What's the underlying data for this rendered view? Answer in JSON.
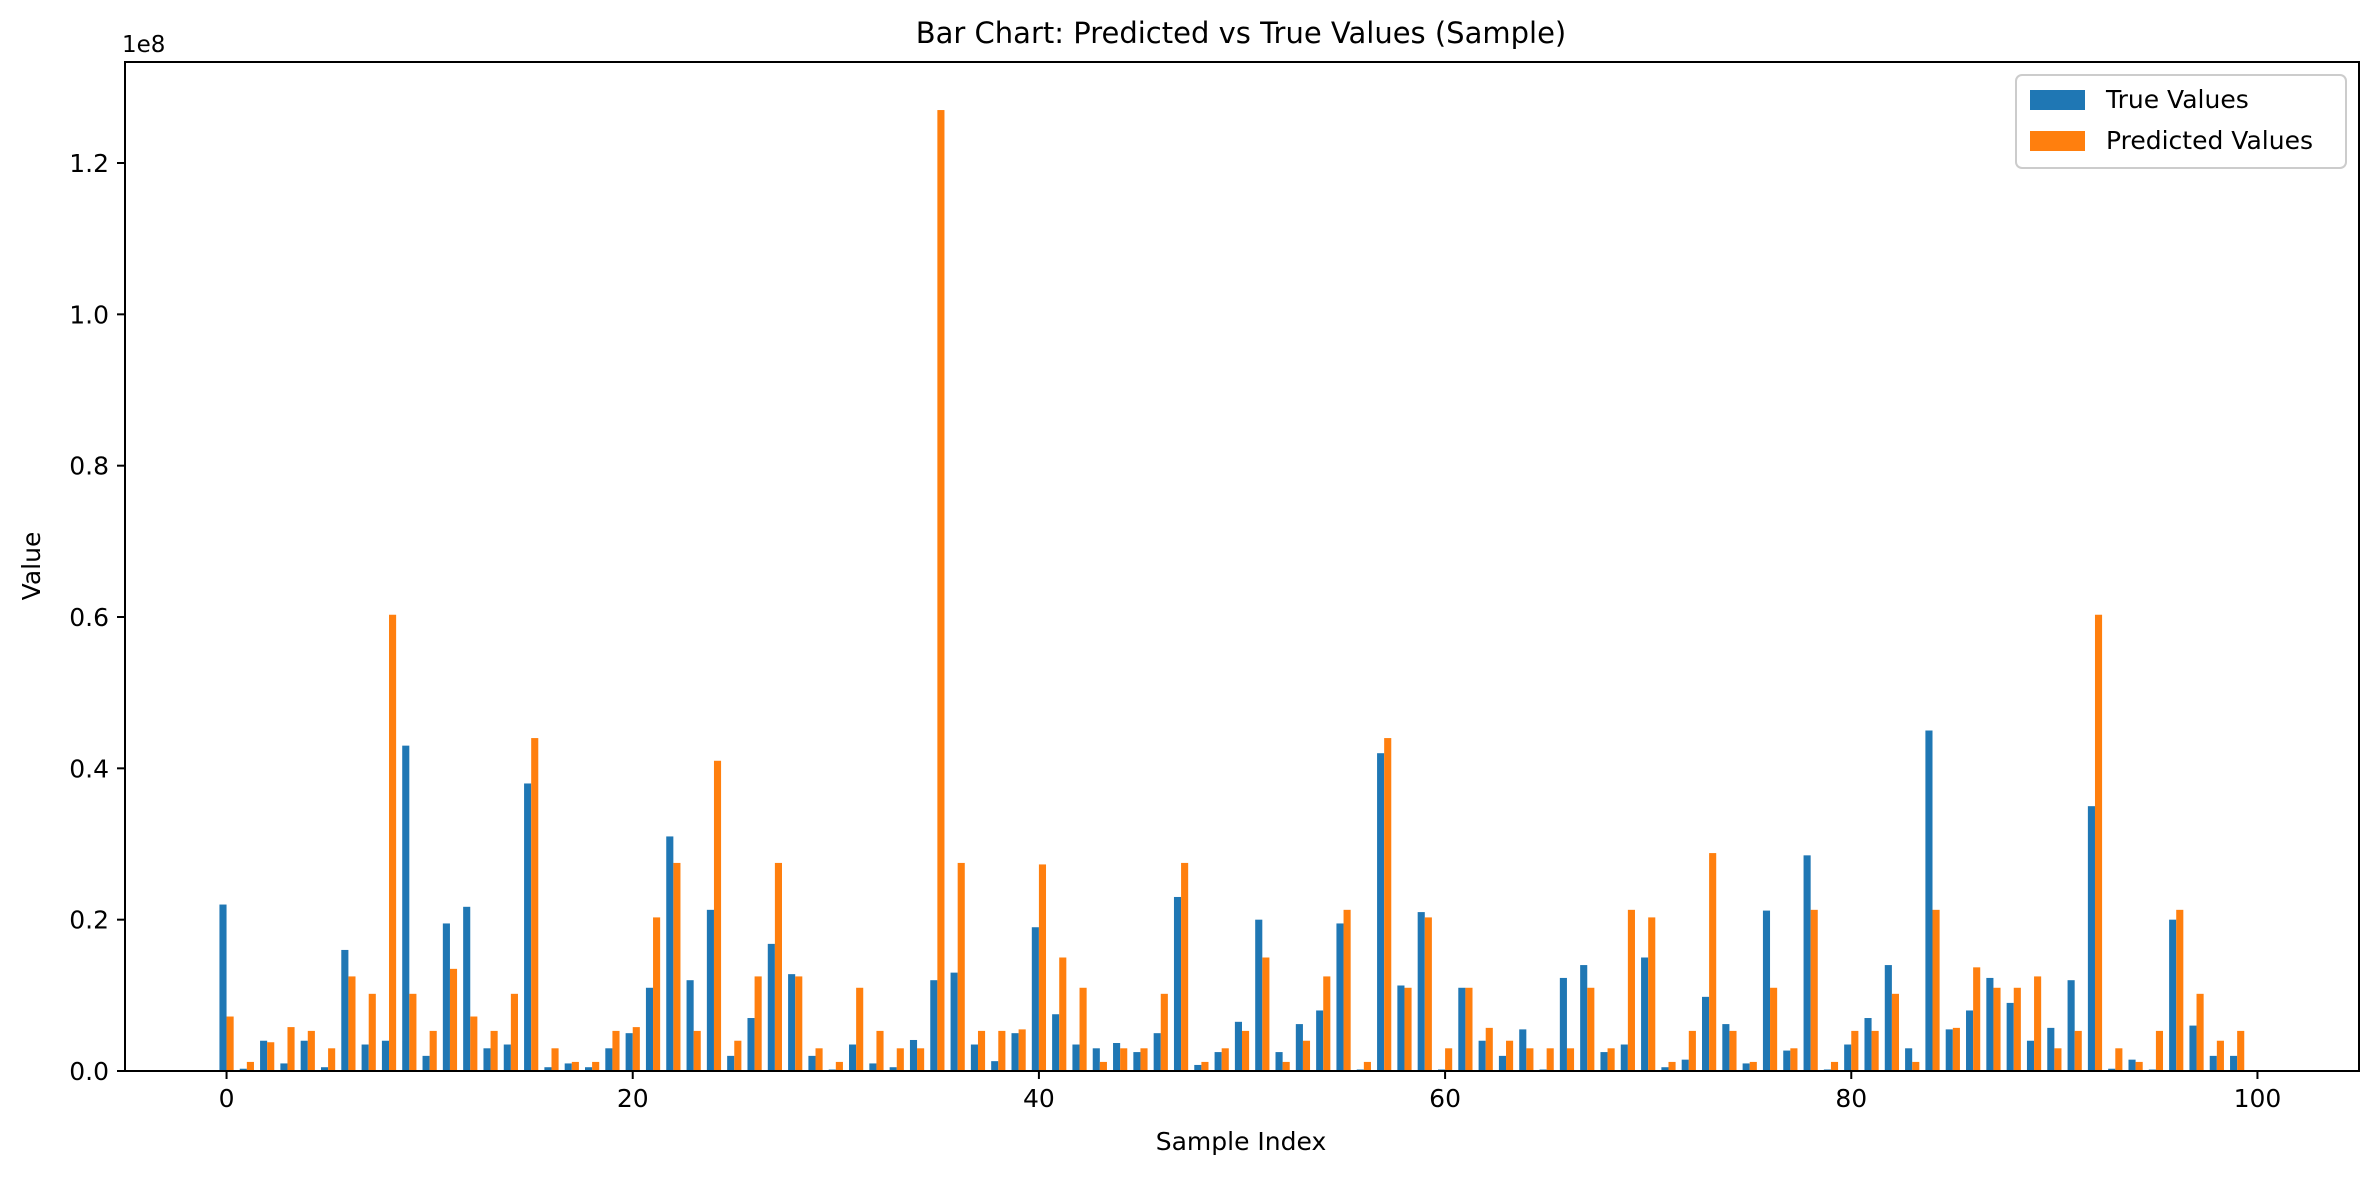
{
  "chart_data": {
    "type": "bar",
    "title": "Bar Chart: Predicted vs True Values (Sample)",
    "xlabel": "Sample Index",
    "ylabel": "Value",
    "y_offset_label": "1e8",
    "x": [
      0,
      1,
      2,
      3,
      4,
      5,
      6,
      7,
      8,
      9,
      10,
      11,
      12,
      13,
      14,
      15,
      16,
      17,
      18,
      19,
      20,
      21,
      22,
      23,
      24,
      25,
      26,
      27,
      28,
      29,
      30,
      31,
      32,
      33,
      34,
      35,
      36,
      37,
      38,
      39,
      40,
      41,
      42,
      43,
      44,
      45,
      46,
      47,
      48,
      49,
      50,
      51,
      52,
      53,
      54,
      55,
      56,
      57,
      58,
      59,
      60,
      61,
      62,
      63,
      64,
      65,
      66,
      67,
      68,
      69,
      70,
      71,
      72,
      73,
      74,
      75,
      76,
      77,
      78,
      79,
      80,
      81,
      82,
      83,
      84,
      85,
      86,
      87,
      88,
      89,
      90,
      91,
      92,
      93,
      94,
      95,
      96,
      97,
      98,
      99
    ],
    "xlim": [
      -5,
      105
    ],
    "ylim": [
      0,
      1.3335
    ],
    "x_ticks": [
      0,
      20,
      40,
      60,
      80,
      100
    ],
    "x_tick_labels": [
      "0",
      "20",
      "40",
      "60",
      "80",
      "100"
    ],
    "y_ticks": [
      0,
      0.2,
      0.4,
      0.6,
      0.8,
      1.0,
      1.2
    ],
    "y_tick_labels": [
      "0.0",
      "0.2",
      "0.4",
      "0.6",
      "0.8",
      "1.0",
      "1.2"
    ],
    "grid": false,
    "legend_position": "top-right",
    "series": [
      {
        "name": "True Values",
        "color": "#1f77b4",
        "values": [
          0.22,
          0.003,
          0.04,
          0.01,
          0.04,
          0.005,
          0.16,
          0.035,
          0.04,
          0.43,
          0.02,
          0.195,
          0.217,
          0.03,
          0.035,
          0.38,
          0.005,
          0.01,
          0.005,
          0.03,
          0.05,
          0.11,
          0.31,
          0.12,
          0.213,
          0.02,
          0.07,
          0.168,
          0.128,
          0.02,
          0.002,
          0.035,
          0.01,
          0.005,
          0.041,
          0.12,
          0.13,
          0.035,
          0.013,
          0.05,
          0.19,
          0.075,
          0.035,
          0.03,
          0.037,
          0.025,
          0.05,
          0.23,
          0.008,
          0.025,
          0.065,
          0.2,
          0.025,
          0.062,
          0.08,
          0.195,
          0.002,
          0.42,
          0.113,
          0.21,
          0.002,
          0.11,
          0.04,
          0.02,
          0.055,
          0.002,
          0.123,
          0.14,
          0.025,
          0.035,
          0.15,
          0.005,
          0.015,
          0.098,
          0.062,
          0.01,
          0.212,
          0.027,
          0.285,
          0.002,
          0.035,
          0.07,
          0.14,
          0.03,
          0.45,
          0.055,
          0.08,
          0.123,
          0.09,
          0.04,
          0.057,
          0.12,
          0.35,
          0.003,
          0.015,
          0.002,
          0.2,
          0.06,
          0.02,
          0.02
        ]
      },
      {
        "name": "Predicted Values",
        "color": "#ff7f0e",
        "values": [
          0.072,
          0.012,
          0.038,
          0.058,
          0.053,
          0.03,
          0.125,
          0.102,
          0.603,
          0.102,
          0.053,
          0.135,
          0.072,
          0.053,
          0.102,
          0.44,
          0.03,
          0.012,
          0.012,
          0.053,
          0.058,
          0.203,
          0.275,
          0.053,
          0.41,
          0.04,
          0.125,
          0.275,
          0.125,
          0.03,
          0.012,
          0.11,
          0.053,
          0.03,
          0.03,
          1.27,
          0.275,
          0.053,
          0.053,
          0.055,
          0.273,
          0.15,
          0.11,
          0.012,
          0.03,
          0.03,
          0.102,
          0.275,
          0.012,
          0.03,
          0.053,
          0.15,
          0.012,
          0.04,
          0.125,
          0.213,
          0.012,
          0.44,
          0.11,
          0.203,
          0.03,
          0.11,
          0.057,
          0.04,
          0.03,
          0.03,
          0.03,
          0.11,
          0.03,
          0.213,
          0.203,
          0.012,
          0.053,
          0.288,
          0.053,
          0.012,
          0.11,
          0.03,
          0.213,
          0.012,
          0.053,
          0.053,
          0.102,
          0.012,
          0.213,
          0.057,
          0.137,
          0.11,
          0.11,
          0.125,
          0.03,
          0.053,
          0.603,
          0.03,
          0.012,
          0.053,
          0.213,
          0.102,
          0.04,
          0.053
        ]
      }
    ]
  }
}
